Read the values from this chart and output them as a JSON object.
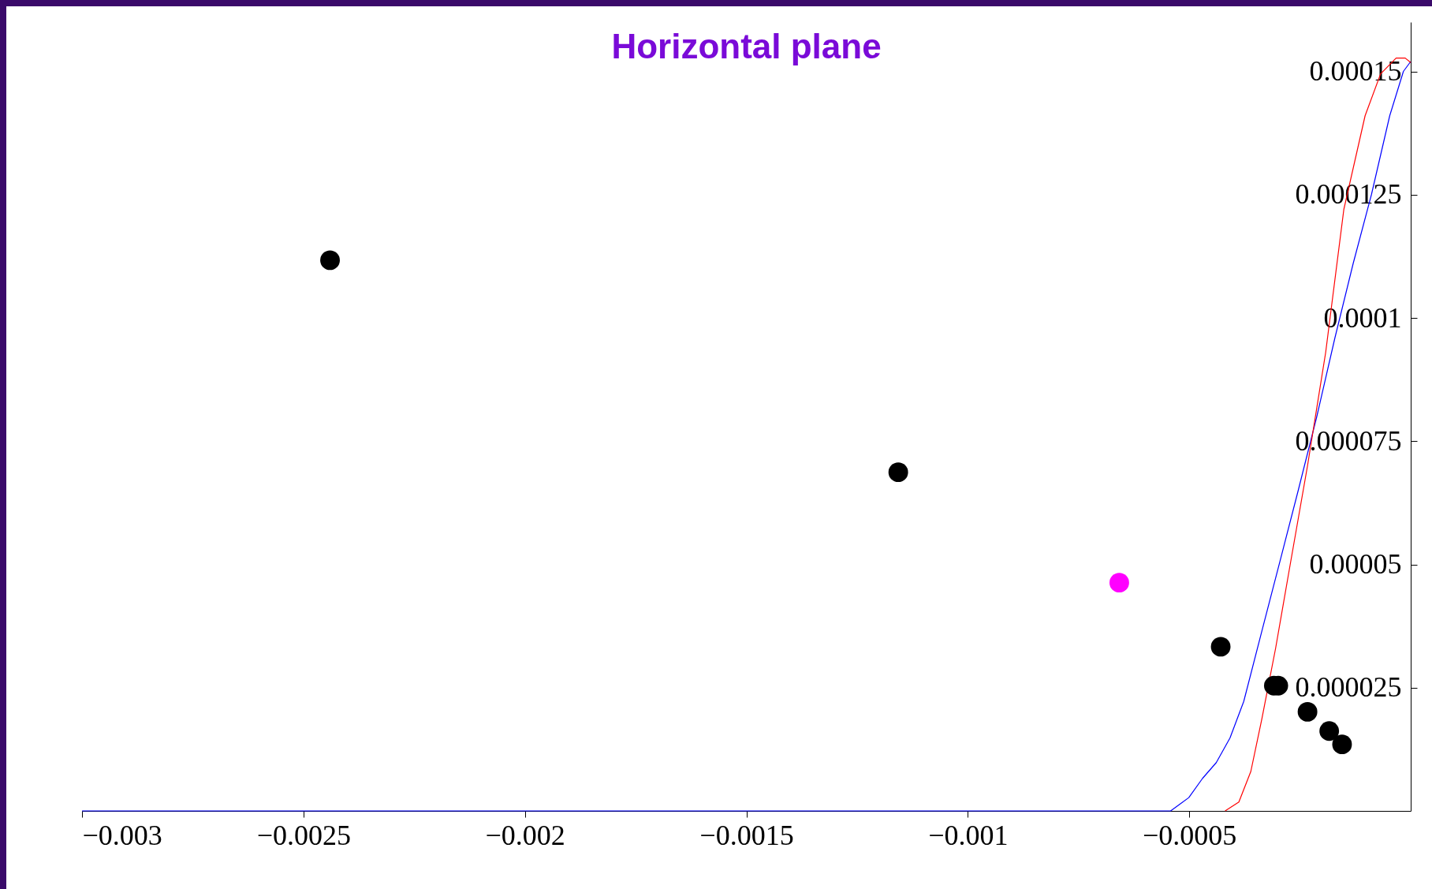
{
  "chart_data": {
    "type": "line",
    "title": "Horizontal plane",
    "xlim": [
      -0.003,
      0
    ],
    "xticks": [
      -0.003,
      -0.0025,
      -0.002,
      -0.0015,
      -0.001,
      -0.0005
    ],
    "ylim": [
      0,
      0.00016
    ],
    "yticks": [
      {
        "value": 2.5e-05,
        "label": "0.000025"
      },
      {
        "value": 5e-05,
        "label": "0.00005"
      },
      {
        "value": 7.5e-05,
        "label": "0.000075"
      },
      0.0001,
      0.000125,
      0.00015
    ],
    "series": [
      {
        "color": "#0000ff",
        "x": [
          -0.003,
          -0.000542,
          -0.000501,
          -0.00047,
          -0.000439,
          -0.000408,
          -0.000377,
          -0.000336,
          -0.000295,
          -0.000254,
          -0.000212,
          -0.000171,
          -0.00013,
          -8.87e-05,
          -4.74e-05,
          -1.65e-05,
          0
        ],
        "values": [
          0,
          0,
          2.7e-06,
          6.6e-06,
          9.8e-06,
          1.48e-05,
          2.22e-05,
          3.65e-05,
          5.07e-05,
          6.5e-05,
          8e-05,
          9.6e-05,
          0.000111,
          0.000125,
          0.000141,
          0.00015,
          0.000152
        ]
      },
      {
        "color": "#ff0000",
        "x": [
          -0.000419,
          -0.000388,
          -0.000361,
          -0.000336,
          -0.000305,
          -0.000274,
          -0.000233,
          -0.000192,
          -0.000151,
          -0.000103,
          -6.8e-05,
          -3.3e-05,
          -1.24e-05,
          0
        ],
        "values": [
          0,
          1.8e-06,
          8e-06,
          1.87e-05,
          3.3e-05,
          4.9e-05,
          7e-05,
          9.3e-05,
          0.000122,
          0.000141,
          0.0001495,
          0.0001527,
          0.0001527,
          0.0001518
        ]
      },
      {
        "type": "scatter",
        "color": "#000000",
        "marker": "circle",
        "x": [
          -0.00244,
          -0.001157,
          -0.000429,
          -0.000309,
          -0.000299,
          -0.000233,
          -0.000184,
          -0.000155
        ],
        "values": [
          0.0001117,
          6.87e-05,
          3.33e-05,
          2.54e-05,
          2.54e-05,
          2.01e-05,
          1.62e-05,
          1.35e-05
        ]
      },
      {
        "type": "scatter",
        "color": "#ff00ff",
        "marker": "circle",
        "x": [
          -0.000658
        ],
        "values": [
          4.63e-05
        ]
      }
    ]
  }
}
